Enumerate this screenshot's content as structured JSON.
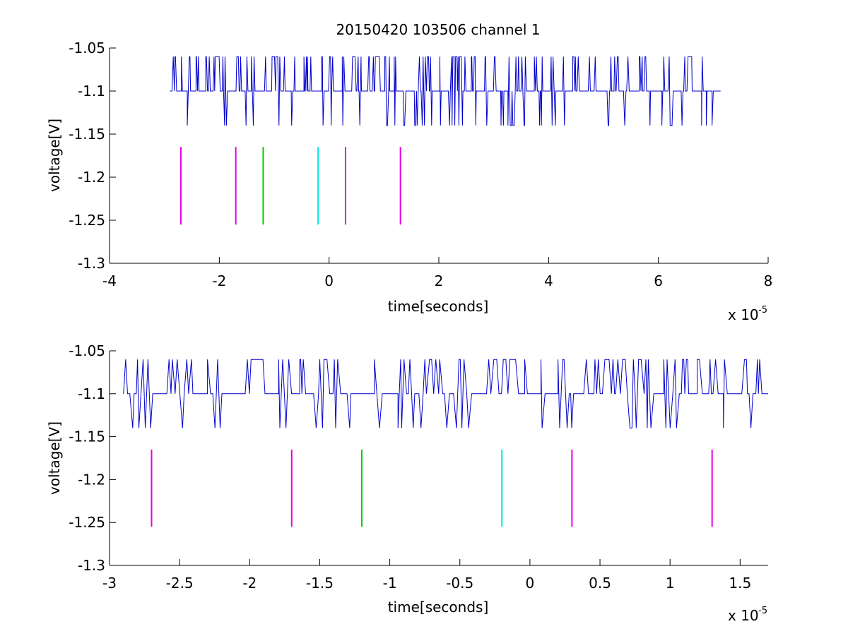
{
  "figure": {
    "title": "20150420 103506 channel 1"
  },
  "chart_data": [
    {
      "type": "line",
      "xlabel": "time[seconds]",
      "ylabel": "voltage[V]",
      "x_multiplier": "x 10",
      "x_multiplier_exp": "-5",
      "xlim": [
        -4,
        8
      ],
      "ylim": [
        -1.3,
        -1.05
      ],
      "x_ticks": [
        -4,
        -2,
        0,
        2,
        4,
        6,
        8
      ],
      "x_tick_labels": [
        "-4",
        "-2",
        "0",
        "2",
        "4",
        "6",
        "8"
      ],
      "y_ticks": [
        -1.3,
        -1.25,
        -1.2,
        -1.15,
        -1.1,
        -1.05
      ],
      "y_tick_labels": [
        "-1.3",
        "-1.25",
        "-1.2",
        "-1.15",
        "-1.1",
        "-1.05"
      ],
      "grid": false,
      "signal": {
        "color": "#0000cc",
        "x_range": [
          -2.9,
          7.0
        ],
        "levels": [
          -1.06,
          -1.1,
          -1.14
        ],
        "baseline": -1.1
      },
      "markers": [
        {
          "x": -2.7,
          "y_range": [
            -1.255,
            -1.165
          ],
          "color": "#e600e6"
        },
        {
          "x": -1.7,
          "y_range": [
            -1.255,
            -1.165
          ],
          "color": "#e600e6"
        },
        {
          "x": -1.2,
          "y_range": [
            -1.255,
            -1.165
          ],
          "color": "#00cc00"
        },
        {
          "x": -0.2,
          "y_range": [
            -1.255,
            -1.165
          ],
          "color": "#00e6e6"
        },
        {
          "x": 0.3,
          "y_range": [
            -1.255,
            -1.165
          ],
          "color": "#e600e6"
        },
        {
          "x": 1.3,
          "y_range": [
            -1.255,
            -1.165
          ],
          "color": "#e600e6"
        }
      ]
    },
    {
      "type": "line",
      "xlabel": "time[seconds]",
      "ylabel": "voltage[V]",
      "x_multiplier": "x 10",
      "x_multiplier_exp": "-5",
      "xlim": [
        -3.0,
        1.7
      ],
      "ylim": [
        -1.3,
        -1.05
      ],
      "x_ticks": [
        -3,
        -2.5,
        -2,
        -1.5,
        -1,
        -0.5,
        0,
        0.5,
        1,
        1.5
      ],
      "x_tick_labels": [
        "-3",
        "-2.5",
        "-2",
        "-1.5",
        "-1",
        "-0.5",
        "0",
        "0.5",
        "1",
        "1.5"
      ],
      "y_ticks": [
        -1.3,
        -1.25,
        -1.2,
        -1.15,
        -1.1,
        -1.05
      ],
      "y_tick_labels": [
        "-1.3",
        "-1.25",
        "-1.2",
        "-1.15",
        "-1.1",
        "-1.05"
      ],
      "grid": false,
      "signal": {
        "color": "#0000cc",
        "x_range": [
          -2.9,
          1.7
        ],
        "levels": [
          -1.06,
          -1.1,
          -1.14
        ],
        "baseline": -1.1
      },
      "markers": [
        {
          "x": -2.7,
          "y_range": [
            -1.255,
            -1.165
          ],
          "color": "#e600e6"
        },
        {
          "x": -1.7,
          "y_range": [
            -1.255,
            -1.165
          ],
          "color": "#e600e6"
        },
        {
          "x": -1.2,
          "y_range": [
            -1.255,
            -1.165
          ],
          "color": "#00cc00"
        },
        {
          "x": -0.2,
          "y_range": [
            -1.255,
            -1.165
          ],
          "color": "#00e6e6"
        },
        {
          "x": 0.3,
          "y_range": [
            -1.255,
            -1.165
          ],
          "color": "#e600e6"
        },
        {
          "x": 1.3,
          "y_range": [
            -1.255,
            -1.165
          ],
          "color": "#e600e6"
        }
      ]
    }
  ]
}
